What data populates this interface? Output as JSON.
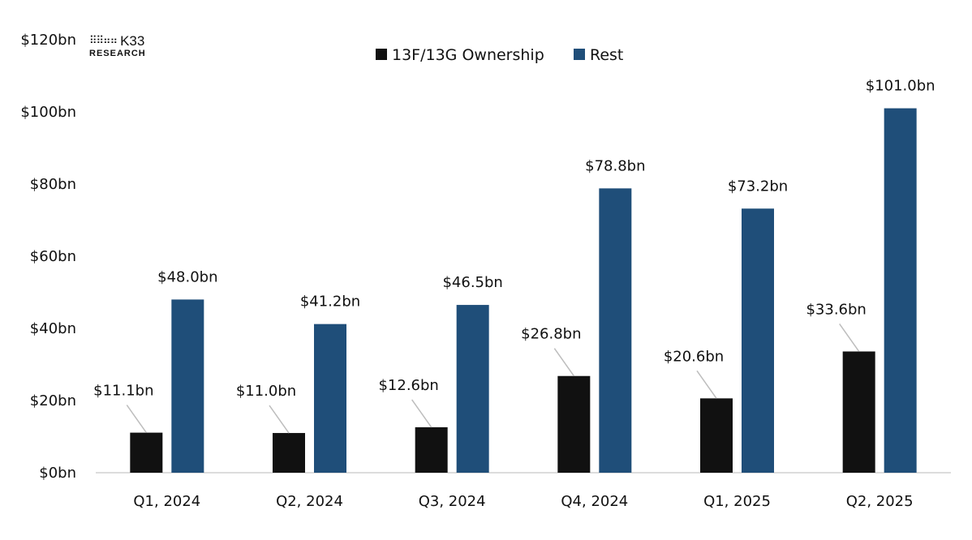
{
  "logo": {
    "dots": "⠿⠿⠶⠶",
    "name": "K33",
    "subtitle": "RESEARCH"
  },
  "chart_data": {
    "type": "bar",
    "categories": [
      "Q1, 2024",
      "Q2, 2024",
      "Q3, 2024",
      "Q4, 2024",
      "Q1, 2025",
      "Q2, 2025"
    ],
    "series": [
      {
        "name": "13F/13G Ownership",
        "color": "#111111",
        "values": [
          11.1,
          11.0,
          12.6,
          26.8,
          20.6,
          33.6
        ],
        "labels": [
          "$11.1bn",
          "$11.0bn",
          "$12.6bn",
          "$26.8bn",
          "$20.6bn",
          "$33.6bn"
        ]
      },
      {
        "name": "Rest",
        "color": "#1f4e79",
        "values": [
          48.0,
          41.2,
          46.5,
          78.8,
          73.2,
          101.0
        ],
        "labels": [
          "$48.0bn",
          "$41.2bn",
          "$46.5bn",
          "$78.8bn",
          "$73.2bn",
          "$101.0bn"
        ]
      }
    ],
    "yticks": [
      0,
      20,
      40,
      60,
      80,
      100,
      120
    ],
    "ytick_labels": [
      "$0bn",
      "$20bn",
      "$40bn",
      "$60bn",
      "$80bn",
      "$100bn",
      "$120bn"
    ],
    "ylim": [
      0,
      120
    ],
    "title": "",
    "xlabel": "",
    "ylabel": "",
    "legend_position": "top-center",
    "grid": false
  }
}
